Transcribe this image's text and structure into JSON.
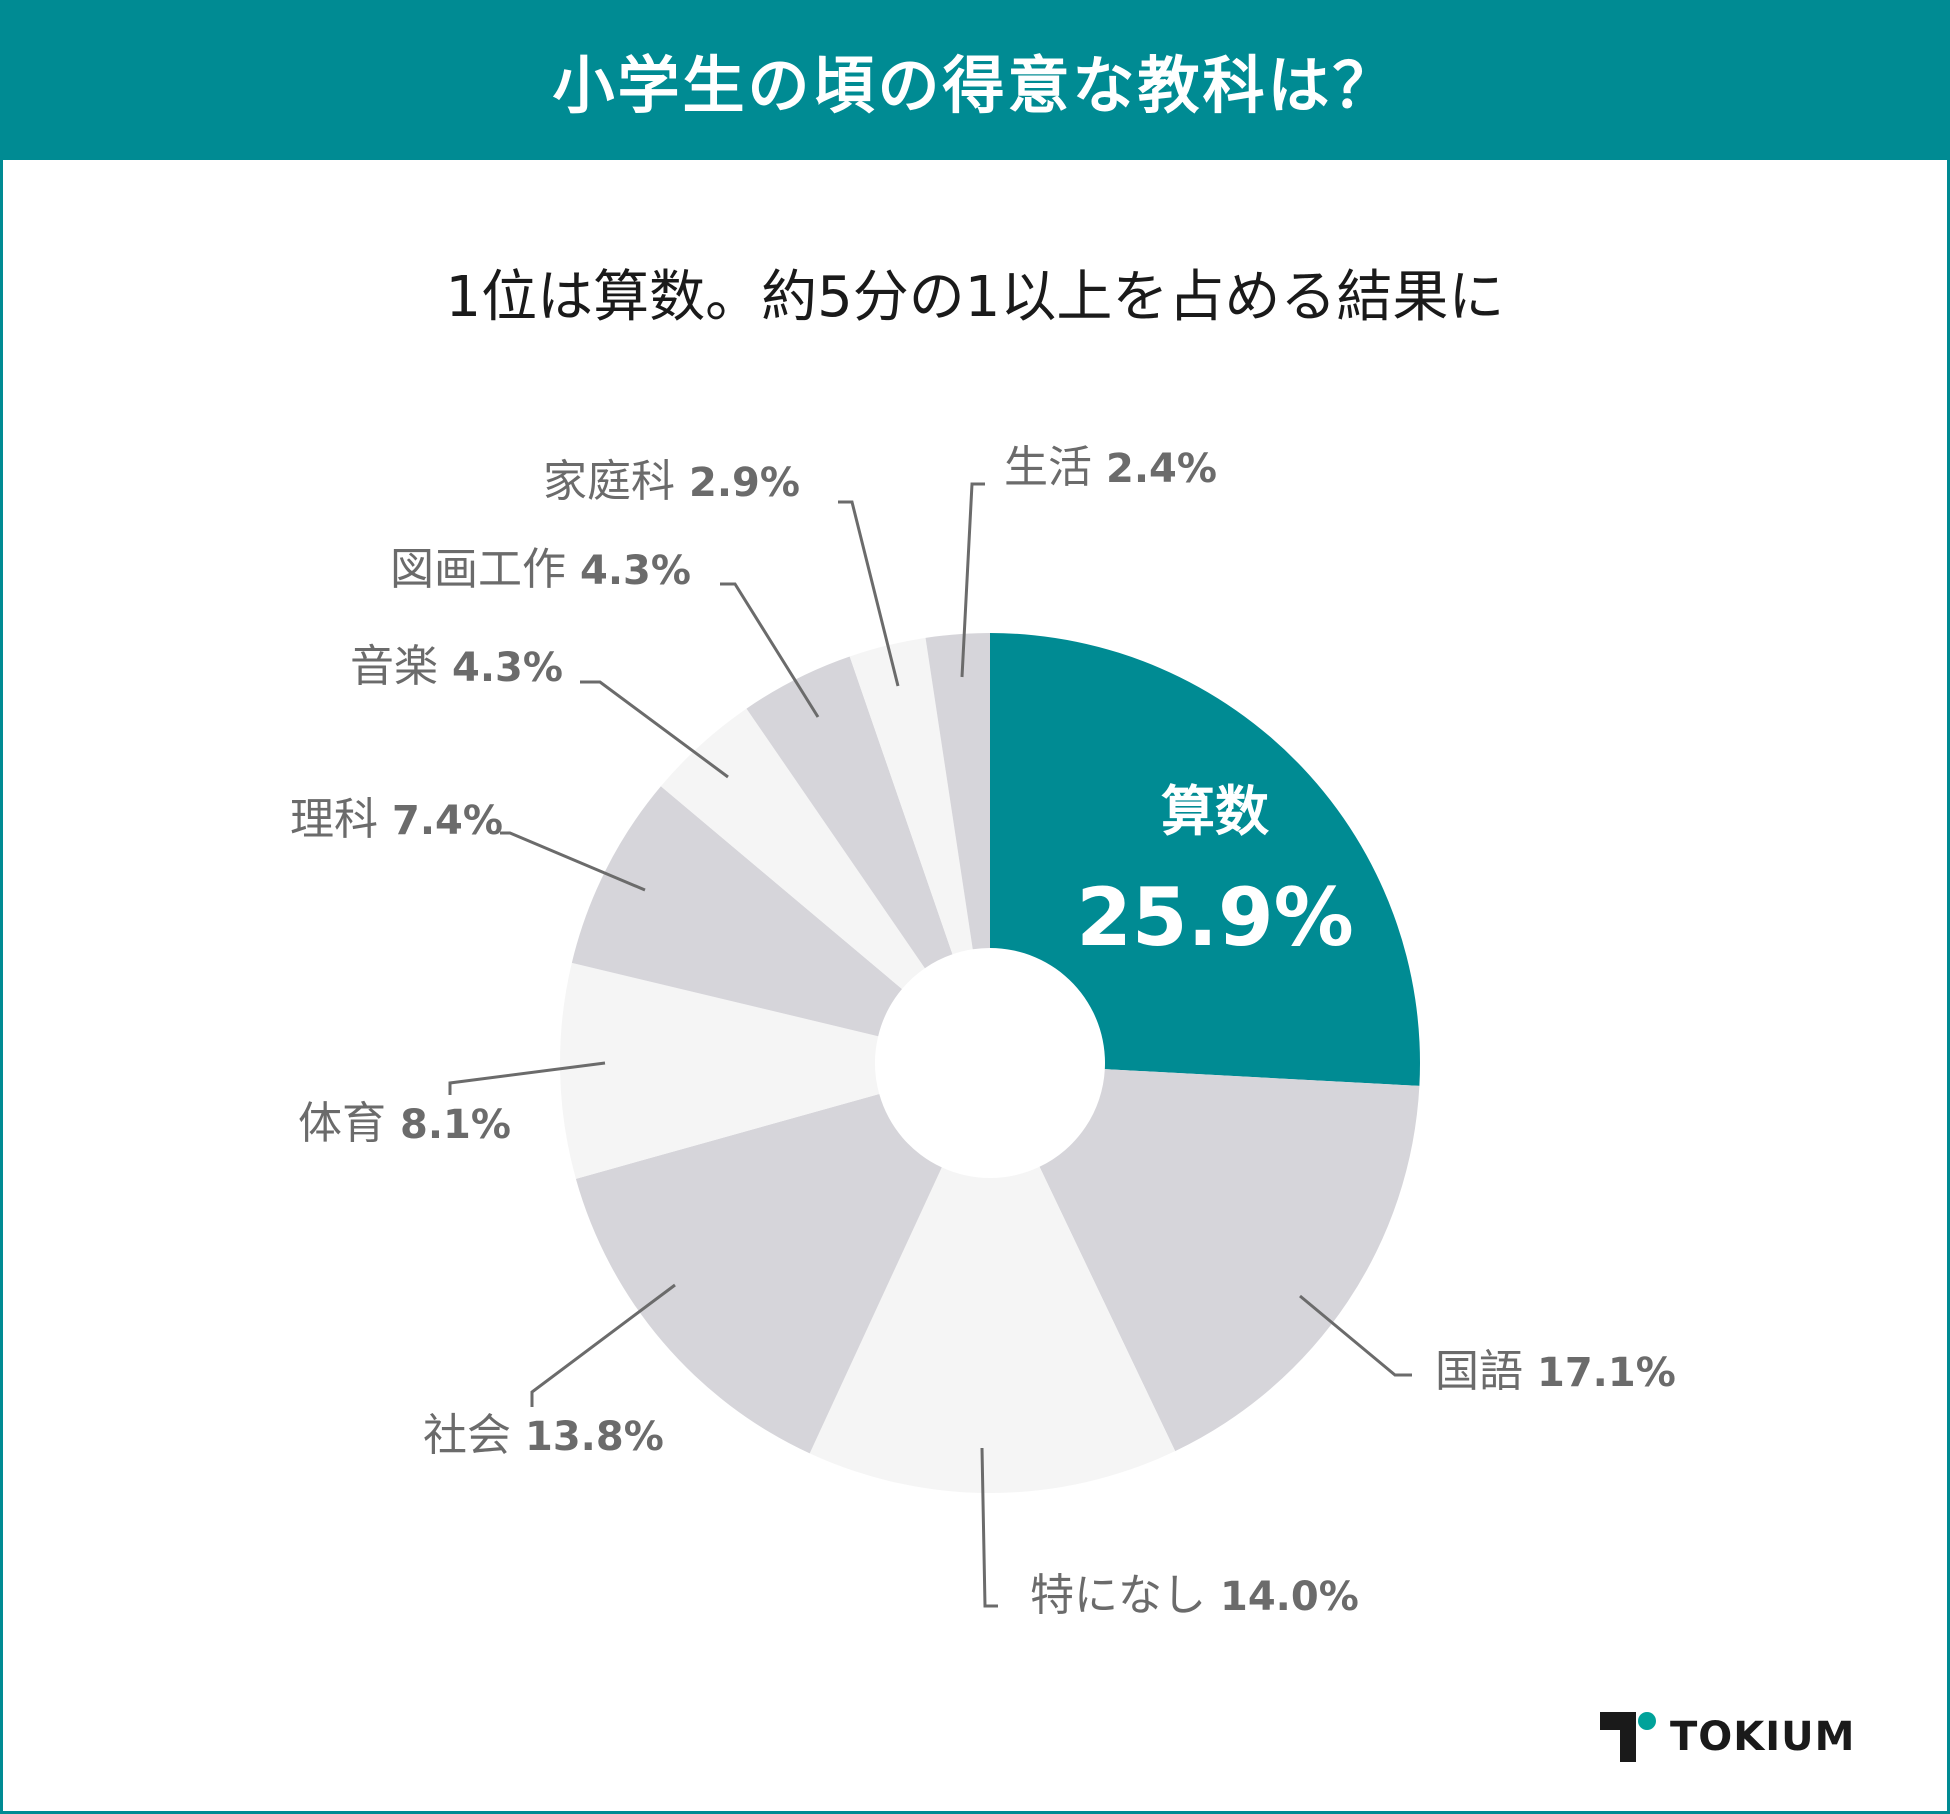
{
  "header": {
    "title": "小学生の頃の得意な教科は？"
  },
  "subtitle": "1位は算数。約5分の1以上を占める結果に",
  "colors": {
    "accent": "#008b93",
    "dark_slice": "#d6d5da",
    "light_slice": "#f5f5f5",
    "label_text": "#6b6b6b",
    "leader_line": "#6b6b6b"
  },
  "chart_data": {
    "type": "pie",
    "donut": true,
    "title": "",
    "slices": [
      {
        "label": "算数",
        "value": 25.9,
        "value_text": "25.9%",
        "color": "#008b93",
        "highlight": true
      },
      {
        "label": "国語",
        "value": 17.1,
        "value_text": "17.1%",
        "color": "#d6d5da"
      },
      {
        "label": "特になし",
        "value": 14.0,
        "value_text": "14.0%",
        "color": "#f5f5f5"
      },
      {
        "label": "社会",
        "value": 13.8,
        "value_text": "13.8%",
        "color": "#d6d5da"
      },
      {
        "label": "体育",
        "value": 8.1,
        "value_text": "8.1%",
        "color": "#f5f5f5"
      },
      {
        "label": "理科",
        "value": 7.4,
        "value_text": "7.4%",
        "color": "#d6d5da"
      },
      {
        "label": "音楽",
        "value": 4.3,
        "value_text": "4.3%",
        "color": "#f5f5f5"
      },
      {
        "label": "図画工作",
        "value": 4.3,
        "value_text": "4.3%",
        "color": "#d6d5da"
      },
      {
        "label": "家庭科",
        "value": 2.9,
        "value_text": "2.9%",
        "color": "#f5f5f5"
      },
      {
        "label": "生活",
        "value": 2.4,
        "value_text": "2.4%",
        "color": "#d6d5da"
      }
    ]
  },
  "logo": {
    "text": "TOKIUM"
  }
}
